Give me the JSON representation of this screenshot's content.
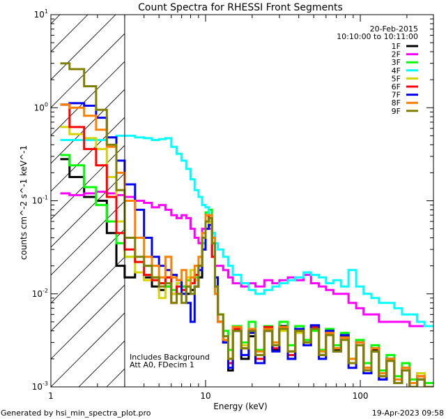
{
  "chart_data": {
    "type": "line",
    "title": "Count Spectra for RHESSI Front Segments",
    "xlabel": "Energy (keV)",
    "ylabel": "counts cm^-2 s^-1 keV^-1",
    "xscale": "log",
    "yscale": "log",
    "xlim": [
      1,
      297
    ],
    "ylim": [
      0.001,
      10
    ],
    "x_ticks": [
      {
        "value": 1,
        "label": "1"
      },
      {
        "value": 10,
        "label": "10"
      },
      {
        "value": 100,
        "label": "100"
      }
    ],
    "y_ticks": [
      {
        "value": 10,
        "base": "10",
        "exp": "1"
      },
      {
        "value": 1,
        "base": "10",
        "exp": "0"
      },
      {
        "value": 0.1,
        "base": "10",
        "exp": "-1"
      },
      {
        "value": 0.01,
        "base": "10",
        "exp": "-2"
      },
      {
        "value": 0.001,
        "base": "10",
        "exp": "-3"
      }
    ],
    "legend_placement": "top-right",
    "date": "20-Feb-2015",
    "time_range": "10:10:00 to 10:11:00",
    "annotations": [
      "Includes Background",
      "Att A0, FDecim 1"
    ],
    "hatched_region_max_energy": 3,
    "energy_edges": [
      1.15,
      1.32,
      1.64,
      1.96,
      2.3,
      2.65,
      3.0,
      3.5,
      4,
      4.5,
      5,
      5.5,
      6,
      6.5,
      7,
      7.5,
      8,
      8.5,
      9,
      9.5,
      10,
      10.5,
      11,
      11.5,
      12,
      13,
      14,
      15,
      17,
      19,
      21,
      24,
      27,
      30,
      34,
      38,
      43,
      48,
      54,
      60,
      67,
      75,
      84,
      94,
      105,
      118,
      132,
      148,
      166,
      186,
      208,
      233,
      260,
      297
    ],
    "series": [
      {
        "name": "1F",
        "color": "#000000",
        "values": [
          0.28,
          0.18,
          0.11,
          0.1,
          0.045,
          0.02,
          0.015,
          0.017,
          0.015,
          0.012,
          0.011,
          0.012,
          0.01,
          0.013,
          0.012,
          0.01,
          0.011,
          0.012,
          0.015,
          0.03,
          0.06,
          0.065,
          0.04,
          0.012,
          0.005,
          0.003,
          0.0015,
          0.004,
          0.002,
          0.0035,
          0.0018,
          0.004,
          0.0025,
          0.0045,
          0.002,
          0.004,
          0.003,
          0.0045,
          0.0022,
          0.004,
          0.0025,
          0.0035,
          0.0018,
          0.003,
          0.0015,
          0.0025,
          0.0012,
          0.002,
          0.0011,
          0.0015,
          0.001,
          0.0012,
          0.001
        ]
      },
      {
        "name": "2F",
        "color": "#ff00ff",
        "values": [
          0.12,
          0.115,
          0.12,
          0.125,
          0.12,
          0.115,
          0.11,
          0.1,
          0.095,
          0.085,
          0.09,
          0.08,
          0.07,
          0.065,
          0.07,
          0.065,
          0.05,
          0.04,
          0.035,
          0.05,
          0.06,
          0.05,
          0.025,
          0.02,
          0.02,
          0.018,
          0.015,
          0.013,
          0.012,
          0.013,
          0.012,
          0.014,
          0.013,
          0.014,
          0.015,
          0.014,
          0.016,
          0.013,
          0.012,
          0.011,
          0.01,
          0.01,
          0.008,
          0.007,
          0.006,
          0.006,
          0.005,
          0.005,
          0.005,
          0.005,
          0.0045,
          0.0045,
          0.0045
        ]
      },
      {
        "name": "3F",
        "color": "#00ff00",
        "values": [
          0.31,
          0.24,
          0.14,
          0.09,
          0.06,
          0.035,
          0.025,
          0.022,
          0.02,
          0.015,
          0.013,
          0.012,
          0.011,
          0.013,
          0.012,
          0.014,
          0.013,
          0.015,
          0.02,
          0.035,
          0.075,
          0.08,
          0.045,
          0.015,
          0.006,
          0.004,
          0.0025,
          0.0045,
          0.003,
          0.005,
          0.0025,
          0.0045,
          0.003,
          0.005,
          0.0028,
          0.0045,
          0.0032,
          0.004,
          0.0025,
          0.0042,
          0.0028,
          0.0038,
          0.002,
          0.0032,
          0.0018,
          0.0028,
          0.0015,
          0.0022,
          0.0013,
          0.0018,
          0.0012,
          0.0014,
          0.0011
        ]
      },
      {
        "name": "4F",
        "color": "#00ffff",
        "values": [
          0.45,
          0.45,
          0.45,
          0.45,
          0.48,
          0.5,
          0.5,
          0.48,
          0.47,
          0.45,
          0.46,
          0.47,
          0.38,
          0.32,
          0.27,
          0.22,
          0.17,
          0.13,
          0.11,
          0.09,
          0.085,
          0.06,
          0.045,
          0.035,
          0.03,
          0.025,
          0.02,
          0.016,
          0.013,
          0.011,
          0.01,
          0.011,
          0.012,
          0.013,
          0.014,
          0.015,
          0.017,
          0.016,
          0.015,
          0.013,
          0.014,
          0.012,
          0.018,
          0.012,
          0.01,
          0.009,
          0.008,
          0.008,
          0.007,
          0.006,
          0.006,
          0.005,
          0.0045
        ]
      },
      {
        "name": "5F",
        "color": "#d4d400",
        "values": [
          0.62,
          0.52,
          0.47,
          0.36,
          0.18,
          0.06,
          0.025,
          0.017,
          0.014,
          0.015,
          0.009,
          0.015,
          0.01,
          0.013,
          0.011,
          0.015,
          0.018,
          0.014,
          0.02,
          0.03,
          0.05,
          0.06,
          0.035,
          0.012,
          0.005,
          0.0035,
          0.002,
          0.004,
          0.0028,
          0.0038,
          0.0022,
          0.0042,
          0.0028,
          0.004,
          0.0024,
          0.0038,
          0.0028,
          0.0042,
          0.0024,
          0.0036,
          0.0026,
          0.0032,
          0.002,
          0.0028,
          0.0016,
          0.0024,
          0.0014,
          0.002,
          0.0012,
          0.0016,
          0.0011,
          0.0014,
          0.001
        ]
      },
      {
        "name": "6F",
        "color": "#ff0000",
        "values": [
          1.08,
          0.62,
          0.36,
          0.24,
          0.11,
          0.045,
          0.03,
          0.022,
          0.016,
          0.014,
          0.013,
          0.015,
          0.008,
          0.012,
          0.011,
          0.012,
          0.013,
          0.016,
          0.02,
          0.04,
          0.07,
          0.065,
          0.025,
          0.01,
          0.005,
          0.003,
          0.0018,
          0.0042,
          0.0026,
          0.004,
          0.002,
          0.0044,
          0.0026,
          0.0042,
          0.0022,
          0.004,
          0.003,
          0.0044,
          0.0022,
          0.0038,
          0.0026,
          0.0034,
          0.0018,
          0.003,
          0.0016,
          0.0026,
          0.0013,
          0.002,
          0.0011,
          0.0016,
          0.001,
          0.0013,
          0.001
        ]
      },
      {
        "name": "7F",
        "color": "#0000ff",
        "values": [
          1.08,
          1.12,
          1.05,
          0.78,
          0.48,
          0.27,
          0.15,
          0.08,
          0.04,
          0.025,
          0.02,
          0.018,
          0.016,
          0.014,
          0.01,
          0.008,
          0.005,
          0.012,
          0.018,
          0.03,
          0.05,
          0.055,
          0.04,
          0.015,
          0.005,
          0.003,
          0.0016,
          0.004,
          0.0022,
          0.0038,
          0.0018,
          0.004,
          0.0024,
          0.0044,
          0.002,
          0.0042,
          0.0028,
          0.0046,
          0.002,
          0.004,
          0.0024,
          0.0036,
          0.0016,
          0.003,
          0.0014,
          0.0024,
          0.0012,
          0.002,
          0.0011,
          0.0015,
          0.001,
          0.0012,
          0.001
        ]
      },
      {
        "name": "8F",
        "color": "#ff8000",
        "values": [
          1.08,
          1.0,
          0.82,
          0.58,
          0.38,
          0.2,
          0.1,
          0.04,
          0.025,
          0.02,
          0.015,
          0.025,
          0.015,
          0.014,
          0.018,
          0.012,
          0.015,
          0.02,
          0.025,
          0.045,
          0.07,
          0.07,
          0.04,
          0.01,
          0.005,
          0.0032,
          0.002,
          0.0044,
          0.0026,
          0.0042,
          0.0024,
          0.0042,
          0.003,
          0.0044,
          0.0024,
          0.004,
          0.003,
          0.0042,
          0.0024,
          0.0038,
          0.0026,
          0.0034,
          0.002,
          0.003,
          0.0016,
          0.0026,
          0.0014,
          0.002,
          0.0012,
          0.0016,
          0.0011,
          0.0013,
          0.001
        ]
      },
      {
        "name": "9F",
        "color": "#808000",
        "values": [
          3.0,
          2.6,
          1.7,
          0.95,
          0.4,
          0.13,
          0.04,
          0.025,
          0.02,
          0.015,
          0.012,
          0.013,
          0.008,
          0.01,
          0.008,
          0.012,
          0.01,
          0.012,
          0.02,
          0.04,
          0.06,
          0.065,
          0.035,
          0.012,
          0.006,
          0.0035,
          0.002,
          0.004,
          0.0026,
          0.004,
          0.0022,
          0.004,
          0.0028,
          0.0042,
          0.0024,
          0.004,
          0.003,
          0.0042,
          0.0022,
          0.0036,
          0.0024,
          0.0032,
          0.0018,
          0.0028,
          0.0015,
          0.0024,
          0.0013,
          0.0019,
          0.0011,
          0.0015,
          0.001,
          0.0012,
          0.001
        ]
      }
    ]
  },
  "footer": {
    "generated_by": "Generated by hsi_min_spectra_plot.pro",
    "timestamp": "19-Apr-2023 09:58"
  }
}
